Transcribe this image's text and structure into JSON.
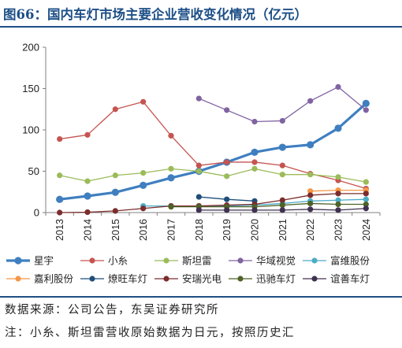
{
  "title": "图66：国内车灯市场主要企业营收变化情况（亿元）",
  "source": "数据来源：公司公告，东吴证券研究所",
  "footnote": "注：小糸、斯坦雷营收原始数据为日元，按照历史汇",
  "chart_data": {
    "type": "line",
    "title": "",
    "xlabel": "",
    "ylabel": "",
    "ylim": [
      0,
      200
    ],
    "yticks": [
      0,
      50,
      100,
      150,
      200
    ],
    "grid": false,
    "legend_placement": "bottom",
    "x": [
      "2013",
      "2014",
      "2015",
      "2016",
      "2017",
      "2018",
      "2019",
      "2020",
      "2021",
      "2022",
      "2023",
      "2024"
    ],
    "series": [
      {
        "name": "星宇",
        "color": "#3f7fc0",
        "width": 3.2,
        "values": [
          16,
          20,
          24.5,
          33,
          42,
          50,
          61,
          73,
          79,
          82,
          102,
          132
        ]
      },
      {
        "name": "小糸",
        "color": "#c55450",
        "width": 1.3,
        "values": [
          89,
          94,
          125,
          134,
          93,
          57,
          61,
          61,
          57,
          47,
          39,
          29
        ]
      },
      {
        "name": "斯坦雷",
        "color": "#9bbb59",
        "width": 1.3,
        "values": [
          45,
          38,
          45,
          48,
          53,
          50,
          44,
          53,
          46,
          46,
          43,
          37
        ]
      },
      {
        "name": "华域视觉",
        "color": "#8064a2",
        "width": 1.3,
        "values": [
          null,
          null,
          null,
          null,
          null,
          138,
          124,
          110,
          111,
          135,
          152,
          124
        ]
      },
      {
        "name": "富维股份",
        "color": "#4bacc6",
        "width": 1.3,
        "values": [
          null,
          null,
          null,
          8,
          8,
          8,
          8,
          9,
          11,
          14,
          15,
          16
        ]
      },
      {
        "name": "嘉利股份",
        "color": "#f79646",
        "width": 1.3,
        "values": [
          null,
          null,
          null,
          null,
          null,
          null,
          null,
          null,
          null,
          26,
          27,
          27
        ]
      },
      {
        "name": "燎旺车灯",
        "color": "#1f4e79",
        "width": 1.3,
        "values": [
          null,
          null,
          null,
          null,
          null,
          19,
          16,
          14,
          null,
          null,
          null,
          null
        ]
      },
      {
        "name": "安瑞光电",
        "color": "#7b2c2c",
        "width": 1.3,
        "values": [
          0,
          0.5,
          2,
          5,
          8,
          8,
          9,
          10,
          15,
          21,
          23,
          23
        ]
      },
      {
        "name": "迅驰车灯",
        "color": "#4f6228",
        "width": 1.3,
        "values": [
          null,
          null,
          null,
          null,
          7,
          7,
          7,
          7,
          9,
          11,
          10,
          10
        ]
      },
      {
        "name": "谊善车灯",
        "color": "#403151",
        "width": 1.3,
        "values": [
          null,
          null,
          null,
          null,
          null,
          3,
          3,
          3,
          3,
          4,
          3,
          5
        ]
      }
    ]
  }
}
